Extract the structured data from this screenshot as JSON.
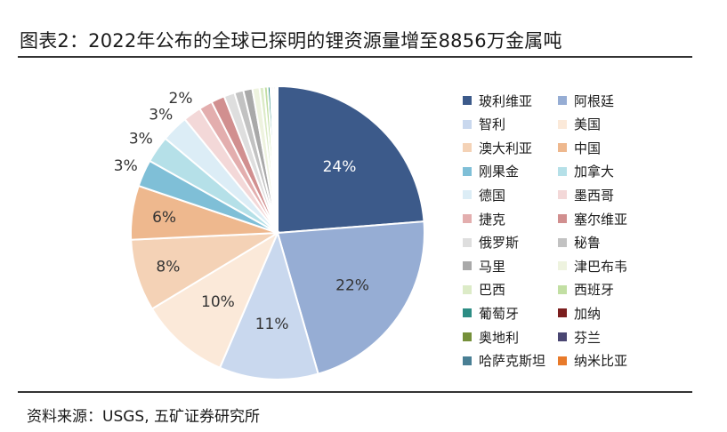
{
  "header": {
    "title": "图表2：2022年公布的全球已探明的锂资源量增至8856万金属吨"
  },
  "footer": {
    "source": "资料来源：USGS, 五矿证券研究所"
  },
  "chart_data": {
    "type": "pie",
    "title": "图表2：2022年公布的全球已探明的锂资源量增至8856万金属吨",
    "unit": "%",
    "legend": "right",
    "slices": [
      {
        "name": "玻利维亚",
        "value": 24,
        "label": "24%",
        "color": "#3c5a8a"
      },
      {
        "name": "阿根廷",
        "value": 22,
        "label": "22%",
        "color": "#96add4"
      },
      {
        "name": "智利",
        "value": 11,
        "label": "11%",
        "color": "#c9d8ee"
      },
      {
        "name": "美国",
        "value": 10,
        "label": "10%",
        "color": "#fbe9d9"
      },
      {
        "name": "澳大利亚",
        "value": 8,
        "label": "8%",
        "color": "#f4d2b6"
      },
      {
        "name": "中国",
        "value": 6,
        "label": "6%",
        "color": "#eeb88e"
      },
      {
        "name": "刚果金",
        "value": 3,
        "label": "3%",
        "color": "#7fbfd7"
      },
      {
        "name": "加拿大",
        "value": 3,
        "label": "3%",
        "color": "#b5e0e8"
      },
      {
        "name": "德国",
        "value": 3,
        "label": "3%",
        "color": "#dcedf6"
      },
      {
        "name": "墨西哥",
        "value": 2,
        "label": "2%",
        "color": "#f3d8d8"
      },
      {
        "name": "捷克",
        "value": 1.5,
        "label": "",
        "color": "#e3aeae"
      },
      {
        "name": "塞尔维亚",
        "value": 1.5,
        "label": "",
        "color": "#d18f8f"
      },
      {
        "name": "俄罗斯",
        "value": 1.2,
        "label": "",
        "color": "#dedede"
      },
      {
        "name": "秘鲁",
        "value": 1.0,
        "label": "",
        "color": "#c2c2c2"
      },
      {
        "name": "马里",
        "value": 1.0,
        "label": "",
        "color": "#a9a9a9"
      },
      {
        "name": "津巴布韦",
        "value": 0.8,
        "label": "",
        "color": "#eef3df"
      },
      {
        "name": "巴西",
        "value": 0.5,
        "label": "",
        "color": "#dcebc7"
      },
      {
        "name": "西班牙",
        "value": 0.4,
        "label": "",
        "color": "#c2dfa3"
      },
      {
        "name": "葡萄牙",
        "value": 0.3,
        "label": "",
        "color": "#2d8d84"
      },
      {
        "name": "加纳",
        "value": 0.2,
        "label": "",
        "color": "#7b1e1e"
      },
      {
        "name": "奥地利",
        "value": 0.2,
        "label": "",
        "color": "#75903a"
      },
      {
        "name": "芬兰",
        "value": 0.2,
        "label": "",
        "color": "#4a4672"
      },
      {
        "name": "哈萨克斯坦",
        "value": 0.1,
        "label": "",
        "color": "#497f94"
      },
      {
        "name": "纳米比亚",
        "value": 0.1,
        "label": "",
        "color": "#e87a2a"
      }
    ]
  }
}
